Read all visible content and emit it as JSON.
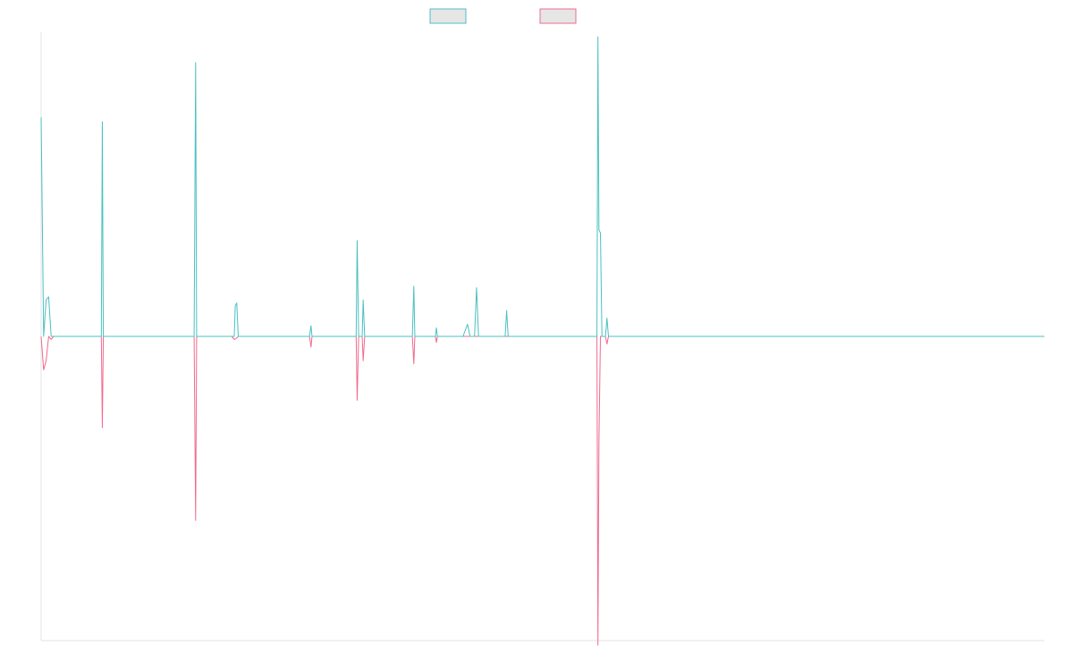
{
  "chart_data": {
    "type": "line",
    "title": "",
    "xlabel": "",
    "ylabel": "",
    "grid": false,
    "legend_position": "top-center",
    "xlim": [
      0,
      200
    ],
    "ylim": [
      -100,
      100
    ],
    "series": [
      {
        "color": "#4bc0c0",
        "legend_fill": "#e6e6e6",
        "points": [
          [
            0,
            72
          ],
          [
            0.5,
            0
          ],
          [
            1,
            12
          ],
          [
            1.5,
            13
          ],
          [
            2,
            0
          ],
          [
            2.5,
            0
          ],
          [
            3,
            0
          ],
          [
            3.5,
            0
          ],
          [
            4,
            0
          ],
          [
            11.5,
            0
          ],
          [
            12,
            0
          ],
          [
            12.2,
            70.5
          ],
          [
            12.4,
            0
          ],
          [
            13,
            0
          ],
          [
            30,
            0
          ],
          [
            30.5,
            0
          ],
          [
            30.8,
            90
          ],
          [
            31,
            0
          ],
          [
            31.5,
            0
          ],
          [
            38,
            0
          ],
          [
            38.5,
            0
          ],
          [
            38.7,
            10
          ],
          [
            39,
            11
          ],
          [
            39.3,
            0
          ],
          [
            40,
            0
          ],
          [
            53.5,
            0
          ],
          [
            53.8,
            3.5
          ],
          [
            54,
            0
          ],
          [
            54.3,
            0
          ],
          [
            62.5,
            0
          ],
          [
            62.8,
            0
          ],
          [
            63,
            31.5
          ],
          [
            63.3,
            0
          ],
          [
            64,
            0
          ],
          [
            64.2,
            12
          ],
          [
            64.5,
            0
          ],
          [
            65,
            0
          ],
          [
            74,
            0
          ],
          [
            74.3,
            16.5
          ],
          [
            74.5,
            0
          ],
          [
            75,
            0
          ],
          [
            78.6,
            0
          ],
          [
            78.8,
            2.8
          ],
          [
            79,
            0
          ],
          [
            79.3,
            0
          ],
          [
            83.5,
            0
          ],
          [
            84.1,
            0
          ],
          [
            85,
            4
          ],
          [
            85.5,
            0
          ],
          [
            85.8,
            0
          ],
          [
            86,
            0
          ],
          [
            86.4,
            0
          ],
          [
            86.8,
            16
          ],
          [
            87.2,
            0
          ],
          [
            87.5,
            0
          ],
          [
            92.5,
            0
          ],
          [
            92.8,
            8.5
          ],
          [
            93.1,
            0
          ],
          [
            93.4,
            0
          ],
          [
            110.5,
            0
          ],
          [
            110.8,
            0
          ],
          [
            111,
            98.5
          ],
          [
            111.2,
            35
          ],
          [
            111.5,
            34
          ],
          [
            111.8,
            0
          ],
          [
            112.5,
            0
          ],
          [
            112.8,
            6
          ],
          [
            113.1,
            0
          ],
          [
            114,
            0
          ],
          [
            200,
            0
          ]
        ]
      },
      {
        "color": "#f06a8e",
        "legend_fill": "#e6e6e6",
        "points": [
          [
            0,
            0
          ],
          [
            0.5,
            -11
          ],
          [
            1,
            -8
          ],
          [
            1.5,
            0
          ],
          [
            2,
            -1
          ],
          [
            2.5,
            0
          ],
          [
            4,
            0
          ],
          [
            11.5,
            0
          ],
          [
            12,
            0
          ],
          [
            12.2,
            -30
          ],
          [
            12.4,
            0
          ],
          [
            13,
            0
          ],
          [
            30,
            0
          ],
          [
            30.5,
            0
          ],
          [
            30.8,
            -60.5
          ],
          [
            31,
            0
          ],
          [
            31.5,
            0
          ],
          [
            38,
            0
          ],
          [
            38.5,
            -1
          ],
          [
            39,
            -0.5
          ],
          [
            39.3,
            0
          ],
          [
            40,
            0
          ],
          [
            53.5,
            0
          ],
          [
            53.8,
            -3.5
          ],
          [
            54,
            0
          ],
          [
            54.3,
            0
          ],
          [
            62.5,
            0
          ],
          [
            62.8,
            0
          ],
          [
            63,
            -21
          ],
          [
            63.3,
            0
          ],
          [
            64,
            0
          ],
          [
            64.2,
            -8
          ],
          [
            64.5,
            0
          ],
          [
            65,
            0
          ],
          [
            74,
            0
          ],
          [
            74.3,
            -9
          ],
          [
            74.5,
            0
          ],
          [
            75,
            0
          ],
          [
            78.6,
            0
          ],
          [
            78.8,
            -2
          ],
          [
            79,
            0
          ],
          [
            79.3,
            0
          ],
          [
            83.5,
            0
          ],
          [
            84.1,
            0
          ],
          [
            85,
            0
          ],
          [
            85.5,
            0
          ],
          [
            85.8,
            0
          ],
          [
            86,
            0
          ],
          [
            86.4,
            0
          ],
          [
            86.8,
            0
          ],
          [
            87.2,
            0
          ],
          [
            87.5,
            0
          ],
          [
            92.5,
            0
          ],
          [
            92.8,
            0
          ],
          [
            93.1,
            0
          ],
          [
            93.4,
            0
          ],
          [
            110.5,
            0
          ],
          [
            110.8,
            0
          ],
          [
            111,
            -101.5
          ],
          [
            111.2,
            -35
          ],
          [
            111.5,
            0
          ],
          [
            111.8,
            0
          ],
          [
            112.5,
            0
          ],
          [
            112.8,
            -2.5
          ],
          [
            113.1,
            0
          ],
          [
            114,
            0
          ],
          [
            200,
            0
          ]
        ]
      }
    ]
  }
}
